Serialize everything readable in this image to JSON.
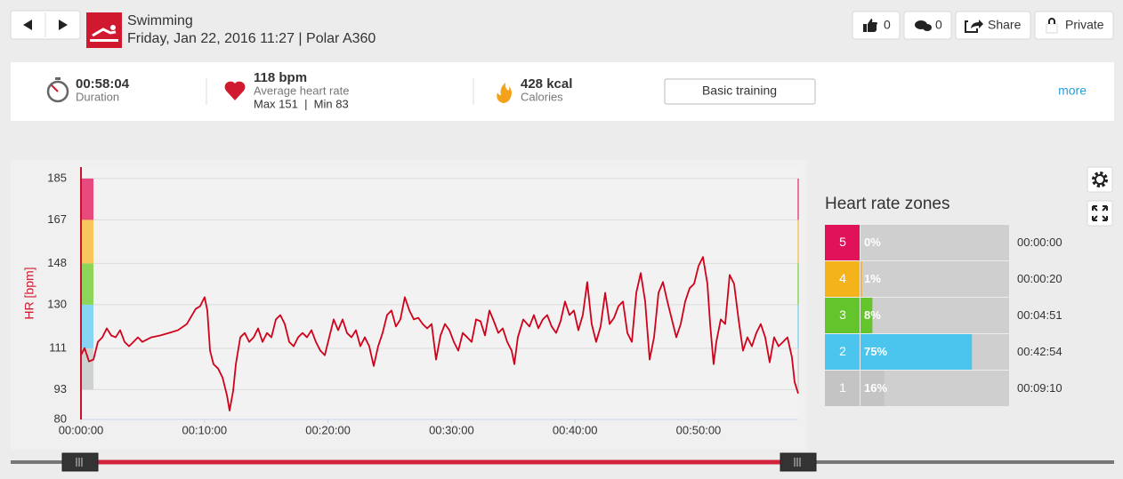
{
  "header": {
    "title": "Swimming",
    "subtitle": "Friday, Jan 22, 2016 11:27 | Polar A360",
    "likes": "0",
    "comments": "0",
    "share": "Share",
    "privacy": "Private"
  },
  "summary": {
    "duration": "00:58:04",
    "duration_label": "Duration",
    "heart_rate": "118 bpm",
    "heart_rate_label": "Average heart rate",
    "heart_rate_range": "Max 151  |  Min 83",
    "calories": "428 kcal",
    "calories_label": "Calories",
    "training_button": "Basic training",
    "more": "more"
  },
  "chart_data": [
    {
      "type": "line",
      "ylabel": "HR [bpm]",
      "color": "#d0021b",
      "x": [
        0.0,
        0.29,
        0.65,
        1.01,
        1.37,
        1.73,
        2.09,
        2.45,
        2.81,
        3.17,
        3.53,
        3.89,
        4.25,
        4.61,
        4.97,
        5.69,
        6.41,
        7.13,
        7.85,
        8.57,
        9.29,
        9.65,
        10.01,
        10.23,
        10.45,
        10.73,
        11.1,
        11.46,
        11.82,
        12.03,
        12.32,
        12.54,
        12.9,
        13.26,
        13.62,
        13.98,
        14.34,
        14.7,
        15.06,
        15.42,
        15.78,
        16.14,
        16.5,
        16.86,
        17.22,
        17.58,
        17.94,
        18.3,
        18.66,
        19.02,
        19.38,
        19.74,
        20.1,
        20.46,
        20.82,
        21.18,
        21.54,
        21.9,
        22.26,
        22.62,
        22.98,
        23.34,
        23.7,
        24.06,
        24.42,
        24.78,
        25.14,
        25.5,
        25.86,
        26.22,
        26.59,
        26.95,
        27.31,
        27.67,
        28.03,
        28.39,
        28.75,
        29.11,
        29.47,
        29.83,
        30.19,
        30.55,
        30.91,
        31.27,
        31.63,
        31.99,
        32.35,
        32.71,
        33.07,
        33.43,
        33.79,
        34.15,
        34.51,
        34.87,
        35.09,
        35.37,
        35.81,
        36.31,
        36.67,
        37.03,
        37.39,
        37.75,
        38.11,
        38.47,
        38.83,
        39.19,
        39.55,
        39.91,
        40.27,
        40.63,
        40.99,
        41.35,
        41.71,
        42.07,
        42.44,
        42.8,
        43.16,
        43.52,
        43.88,
        44.24,
        44.6,
        44.96,
        45.32,
        45.68,
        46.04,
        46.4,
        46.76,
        47.12,
        47.48,
        47.84,
        48.2,
        48.56,
        48.92,
        49.28,
        49.64,
        50.0,
        50.36,
        50.72,
        50.94,
        51.22,
        51.44,
        51.8,
        52.16,
        52.52,
        52.88,
        53.24,
        53.6,
        53.96,
        54.32,
        54.68,
        55.04,
        55.4,
        55.76,
        56.12,
        56.48,
        56.84,
        57.2,
        57.56,
        57.78,
        58.07
      ],
      "values": [
        108.0,
        111.1,
        105.3,
        106.1,
        113.8,
        115.8,
        119.7,
        116.6,
        115.8,
        118.9,
        113.8,
        111.9,
        113.8,
        115.8,
        113.8,
        115.8,
        116.6,
        117.7,
        118.9,
        121.6,
        128.2,
        129.4,
        133.3,
        127.5,
        110.0,
        104.1,
        102.2,
        98.3,
        90.5,
        83.9,
        92.4,
        104.1,
        115.8,
        117.7,
        113.8,
        115.8,
        119.7,
        113.8,
        117.7,
        115.8,
        123.6,
        125.5,
        121.6,
        113.8,
        111.9,
        115.8,
        117.7,
        115.8,
        118.9,
        113.8,
        110.0,
        108.0,
        115.8,
        123.6,
        118.9,
        123.6,
        117.7,
        115.8,
        118.9,
        111.9,
        115.8,
        111.9,
        103.3,
        111.9,
        117.7,
        125.5,
        127.5,
        120.5,
        123.6,
        133.3,
        127.5,
        123.6,
        124.3,
        121.6,
        119.7,
        121.6,
        106.1,
        116.6,
        121.6,
        118.9,
        113.8,
        110.0,
        117.7,
        115.8,
        113.8,
        123.6,
        122.8,
        116.6,
        127.5,
        122.8,
        117.7,
        119.7,
        113.8,
        110.0,
        104.1,
        115.8,
        123.6,
        120.5,
        125.5,
        119.7,
        123.6,
        125.5,
        120.5,
        117.7,
        122.8,
        131.4,
        125.5,
        127.5,
        118.9,
        125.5,
        139.9,
        121.6,
        113.8,
        120.5,
        135.2,
        121.6,
        124.3,
        129.4,
        131.4,
        117.7,
        113.8,
        135.2,
        143.8,
        131.4,
        106.1,
        115.8,
        135.2,
        139.9,
        131.4,
        123.6,
        115.8,
        121.6,
        131.4,
        137.2,
        139.1,
        146.9,
        150.8,
        139.1,
        121.6,
        104.1,
        113.8,
        123.6,
        121.6,
        143.0,
        139.1,
        123.6,
        110.0,
        115.8,
        111.9,
        117.7,
        121.6,
        115.8,
        104.9,
        115.8,
        111.9,
        113.8,
        115.8,
        107.2,
        96.3,
        91.3
      ],
      "xlim": [
        0,
        58.07
      ],
      "ylim": [
        80,
        190
      ],
      "xticks": [
        {
          "value": 0,
          "label": "00:00:00"
        },
        {
          "value": 10,
          "label": "00:10:00"
        },
        {
          "value": 20,
          "label": "00:20:00"
        },
        {
          "value": 30,
          "label": "00:30:00"
        },
        {
          "value": 40,
          "label": "00:40:00"
        },
        {
          "value": 50,
          "label": "00:50:00"
        }
      ],
      "yticks": [
        80,
        93,
        111,
        130,
        148,
        167,
        185
      ],
      "grid": true,
      "zone_colors": [
        "#cfd0d0",
        "#86d5f3",
        "#8dd45b",
        "#f8c65c",
        "#e84a7e"
      ]
    },
    {
      "type": "bar",
      "title": "Heart rate zones",
      "categories": [
        "5",
        "4",
        "3",
        "2",
        "1"
      ],
      "values": [
        0,
        1,
        8,
        75,
        16
      ],
      "value_labels": [
        "0%",
        "1%",
        "8%",
        "75%",
        "16%"
      ],
      "durations": [
        "00:00:00",
        "00:00:20",
        "00:04:51",
        "00:42:54",
        "00:09:10"
      ],
      "colors": [
        "#e0135a",
        "#f4b31b",
        "#64c42b",
        "#4cc5ee",
        "#c4c4c4"
      ],
      "xlim": [
        0,
        100
      ]
    }
  ]
}
